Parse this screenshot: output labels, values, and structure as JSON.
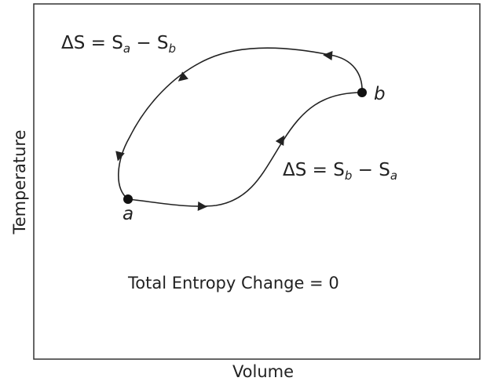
{
  "axes": {
    "x_label": "Volume",
    "y_label": "Temperature"
  },
  "points": [
    {
      "label": "a"
    },
    {
      "label": "b"
    }
  ],
  "upper_path": {
    "lhs": "ΔS = S",
    "sub1": "a",
    "mid": " − S",
    "sub2": "b"
  },
  "lower_path": {
    "lhs": "ΔS = S",
    "sub1": "b",
    "mid": " − S",
    "sub2": "a"
  },
  "total": "Total Entropy Change = 0"
}
